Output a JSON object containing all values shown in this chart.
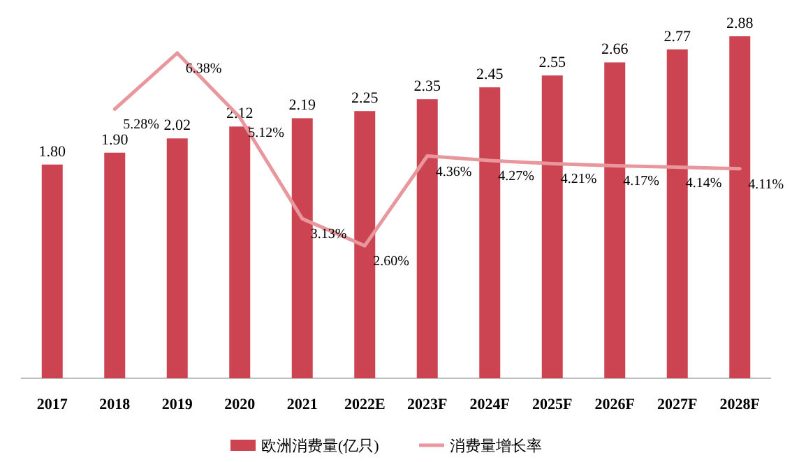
{
  "chart_data": {
    "type": "bar",
    "categories": [
      "2017",
      "2018",
      "2019",
      "2020",
      "2021",
      "2022E",
      "2023F",
      "2024F",
      "2025F",
      "2026F",
      "2027F",
      "2028F"
    ],
    "series": [
      {
        "name": "欧洲消费量(亿只)",
        "color": "#cc4452",
        "value_labels": [
          "1.80",
          "1.90",
          "2.02",
          "2.12",
          "2.19",
          "2.25",
          "2.35",
          "2.45",
          "2.55",
          "2.66",
          "2.77",
          "2.88"
        ],
        "values": [
          1.8,
          1.9,
          2.02,
          2.12,
          2.19,
          2.25,
          2.35,
          2.45,
          2.55,
          2.66,
          2.77,
          2.88
        ]
      },
      {
        "name": "消费量增长率",
        "type": "line",
        "axis": "y2",
        "color": "#e8979c",
        "value_labels": [
          null,
          "5.28%",
          "6.38%",
          "5.12%",
          "3.13%",
          "2.60%",
          "4.36%",
          "4.27%",
          "4.21%",
          "4.17%",
          "4.14%",
          "4.11%"
        ],
        "values": [
          null,
          5.28,
          6.38,
          5.12,
          3.13,
          2.6,
          4.36,
          4.27,
          4.21,
          4.17,
          4.14,
          4.11
        ]
      }
    ],
    "data_labels": true,
    "legend": "bottom"
  }
}
